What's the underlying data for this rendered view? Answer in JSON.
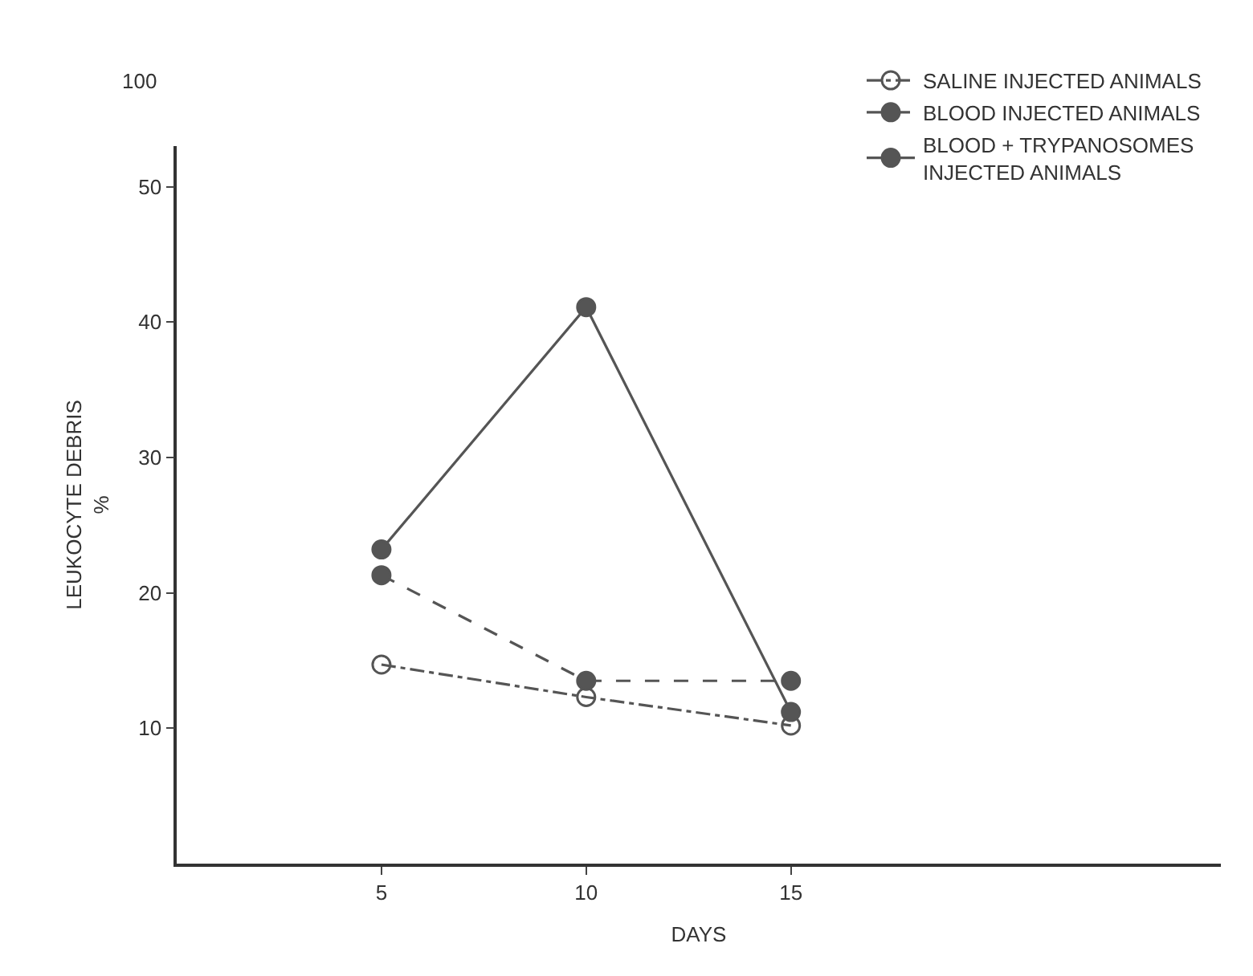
{
  "chart_data": {
    "type": "line",
    "xlabel": "DAYS",
    "ylabel": "LEUKOCYTE DEBRIS\n%",
    "x": [
      5,
      10,
      15
    ],
    "xlim": [
      0,
      25.5
    ],
    "xticks": [
      5,
      10,
      15
    ],
    "ylim": [
      0,
      53
    ],
    "yticks": [
      10,
      20,
      30,
      40,
      50
    ],
    "annotations": [
      "100"
    ],
    "legend": "top right",
    "series": [
      {
        "name": "SALINE INJECTED ANIMALS",
        "color": "#555555",
        "values": [
          14.7,
          12.3,
          10.2
        ],
        "line_style": "dashdot",
        "marker": "circle-open"
      },
      {
        "name": "BLOOD INJECTED ANIMALS",
        "color": "#555555",
        "values": [
          21.3,
          13.5,
          13.5
        ],
        "line_style": "dashed",
        "marker": "circle"
      },
      {
        "name": "BLOOD + TRYPANOSOMES\nINJECTED ANIMALS",
        "color": "#555555",
        "values": [
          23.2,
          41.1,
          11.2
        ],
        "line_style": "solid",
        "marker": "circle"
      }
    ]
  }
}
